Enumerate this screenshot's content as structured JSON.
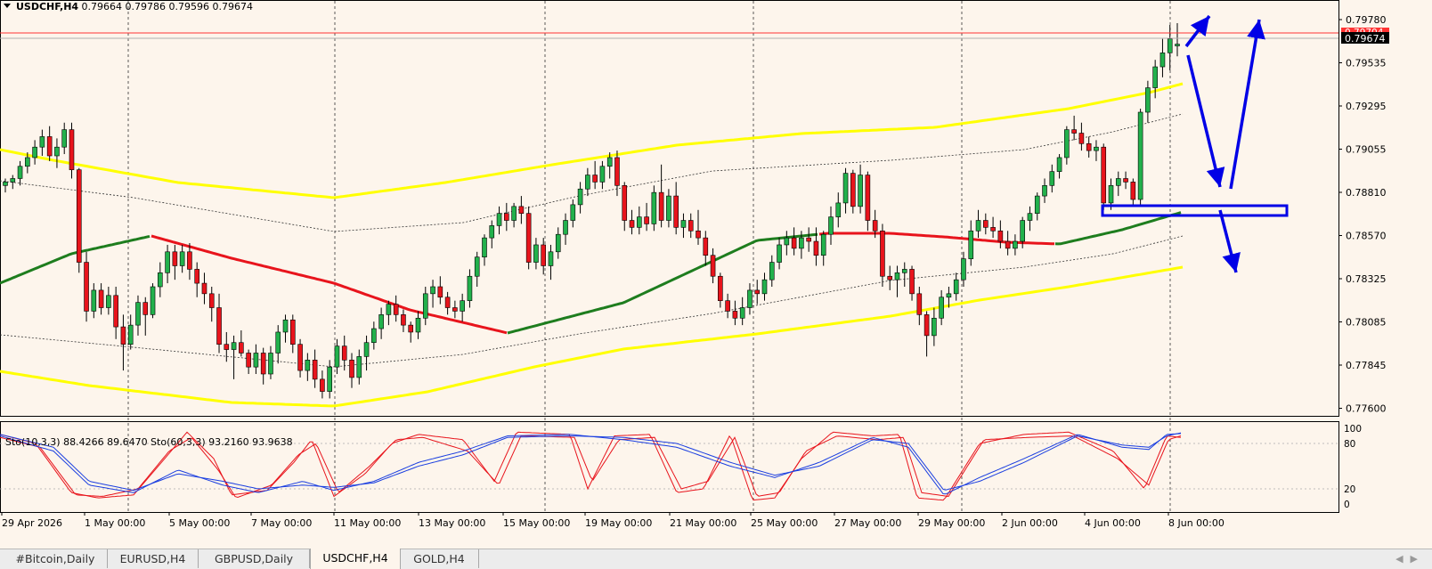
{
  "header": {
    "symbol_tf": "USDCHF,H4",
    "ohlc": "0.79664 0.79786 0.79596 0.79674"
  },
  "price_axis": {
    "labels": [
      "0.79780",
      "0.79535",
      "0.79295",
      "0.79055",
      "0.78810",
      "0.78570",
      "0.78325",
      "0.78085",
      "0.77845",
      "0.77600"
    ],
    "badge_upper": "0.79704",
    "badge_current": "0.79674"
  },
  "stoch": {
    "label": "Sto(10,3,3) 88.4266 89.6470  Sto(60,3,3) 93.2160 93.9638",
    "axis_labels": [
      "100",
      "80",
      "20",
      "0"
    ]
  },
  "time_axis": {
    "labels": [
      "29 Apr 2026",
      "1 May 00:00",
      "5 May 00:00",
      "7 May 00:00",
      "11 May 00:00",
      "13 May 00:00",
      "15 May 00:00",
      "19 May 00:00",
      "21 May 00:00",
      "25 May 00:00",
      "27 May 00:00",
      "29 May 00:00",
      "2 Jun 00:00",
      "4 Jun 00:00",
      "8 Jun 00:00"
    ]
  },
  "tabs": [
    {
      "label": "#Bitcoin,Daily"
    },
    {
      "label": "EURUSD,H4"
    },
    {
      "label": "GBPUSD,Daily"
    },
    {
      "label": "USDCHF,H4",
      "active": true
    },
    {
      "label": "GOLD,H4"
    }
  ],
  "colors": {
    "background": "#fdf5ec",
    "bull_candle": "#22b14c",
    "bear_candle": "#e8141c",
    "envelope": "#ffff00",
    "ma_up": "#1e7d1e",
    "ma_down": "#e8141c",
    "forecast_arrows": "#0000e6",
    "current_price_line": "#ff3333"
  },
  "chart_data": {
    "type": "candlestick",
    "symbol": "USDCHF",
    "timeframe": "H4",
    "ylim": [
      0.776,
      0.798
    ],
    "candles": [
      [
        0.7886,
        0.789,
        0.7882,
        0.7888
      ],
      [
        0.7888,
        0.7892,
        0.7884,
        0.789
      ],
      [
        0.789,
        0.79,
        0.7886,
        0.7897
      ],
      [
        0.7897,
        0.7905,
        0.7893,
        0.7902
      ],
      [
        0.7902,
        0.7912,
        0.7898,
        0.7908
      ],
      [
        0.7908,
        0.7918,
        0.7903,
        0.7914
      ],
      [
        0.7914,
        0.792,
        0.79,
        0.7903
      ],
      [
        0.7903,
        0.7913,
        0.7896,
        0.7908
      ],
      [
        0.7908,
        0.7922,
        0.7904,
        0.7918
      ],
      [
        0.7918,
        0.7922,
        0.789,
        0.7895
      ],
      [
        0.7895,
        0.7896,
        0.7836,
        0.7842
      ],
      [
        0.7842,
        0.7848,
        0.7808,
        0.7814
      ],
      [
        0.7814,
        0.783,
        0.781,
        0.7826
      ],
      [
        0.7826,
        0.783,
        0.7812,
        0.7816
      ],
      [
        0.7816,
        0.7828,
        0.7812,
        0.7823
      ],
      [
        0.7823,
        0.7828,
        0.7798,
        0.7805
      ],
      [
        0.7805,
        0.7812,
        0.778,
        0.7795
      ],
      [
        0.7795,
        0.7812,
        0.7792,
        0.7806
      ],
      [
        0.7806,
        0.7823,
        0.78,
        0.7819
      ],
      [
        0.7819,
        0.7822,
        0.78,
        0.7812
      ],
      [
        0.7812,
        0.783,
        0.781,
        0.7828
      ],
      [
        0.7828,
        0.7842,
        0.7822,
        0.7836
      ],
      [
        0.7836,
        0.7852,
        0.783,
        0.7848
      ],
      [
        0.7848,
        0.7852,
        0.7832,
        0.784
      ],
      [
        0.784,
        0.7852,
        0.7836,
        0.7848
      ],
      [
        0.7848,
        0.7853,
        0.7832,
        0.7838
      ],
      [
        0.7838,
        0.7842,
        0.7822,
        0.783
      ],
      [
        0.783,
        0.7836,
        0.7818,
        0.7824
      ],
      [
        0.7824,
        0.7828,
        0.7808,
        0.7816
      ],
      [
        0.7816,
        0.7824,
        0.779,
        0.7795
      ],
      [
        0.7795,
        0.7802,
        0.7785,
        0.7792
      ],
      [
        0.7792,
        0.78,
        0.7775,
        0.7796
      ],
      [
        0.7796,
        0.7803,
        0.7788,
        0.779
      ],
      [
        0.779,
        0.7792,
        0.7778,
        0.7782
      ],
      [
        0.7782,
        0.7795,
        0.7778,
        0.779
      ],
      [
        0.779,
        0.7793,
        0.7772,
        0.7778
      ],
      [
        0.7778,
        0.7794,
        0.7775,
        0.779
      ],
      [
        0.779,
        0.7806,
        0.7784,
        0.7802
      ],
      [
        0.7802,
        0.7812,
        0.7796,
        0.7809
      ],
      [
        0.7809,
        0.7812,
        0.779,
        0.7795
      ],
      [
        0.7795,
        0.7798,
        0.7776,
        0.778
      ],
      [
        0.778,
        0.779,
        0.7774,
        0.7786
      ],
      [
        0.7786,
        0.7792,
        0.777,
        0.7775
      ],
      [
        0.7775,
        0.778,
        0.7764,
        0.7768
      ],
      [
        0.7768,
        0.7786,
        0.7764,
        0.7782
      ],
      [
        0.7782,
        0.7798,
        0.7778,
        0.7794
      ],
      [
        0.7794,
        0.78,
        0.778,
        0.7786
      ],
      [
        0.7786,
        0.779,
        0.777,
        0.7776
      ],
      [
        0.7776,
        0.7792,
        0.7772,
        0.7788
      ],
      [
        0.7788,
        0.78,
        0.778,
        0.7796
      ],
      [
        0.7796,
        0.7808,
        0.7792,
        0.7804
      ],
      [
        0.7804,
        0.7816,
        0.7798,
        0.7812
      ],
      [
        0.7812,
        0.782,
        0.7806,
        0.7818
      ],
      [
        0.7818,
        0.7823,
        0.7808,
        0.7812
      ],
      [
        0.7812,
        0.7815,
        0.7802,
        0.7806
      ],
      [
        0.7806,
        0.7808,
        0.7796,
        0.7802
      ],
      [
        0.7802,
        0.7814,
        0.7798,
        0.781
      ],
      [
        0.781,
        0.7828,
        0.7806,
        0.7824
      ],
      [
        0.7824,
        0.7832,
        0.7816,
        0.7828
      ],
      [
        0.7828,
        0.7834,
        0.7818,
        0.7822
      ],
      [
        0.7822,
        0.7825,
        0.7812,
        0.7816
      ],
      [
        0.7816,
        0.782,
        0.781,
        0.7814
      ],
      [
        0.7814,
        0.7824,
        0.7808,
        0.782
      ],
      [
        0.782,
        0.7838,
        0.7816,
        0.7834
      ],
      [
        0.7834,
        0.7848,
        0.7828,
        0.7845
      ],
      [
        0.7845,
        0.7858,
        0.784,
        0.7856
      ],
      [
        0.7856,
        0.7866,
        0.785,
        0.7863
      ],
      [
        0.7863,
        0.7874,
        0.7858,
        0.787
      ],
      [
        0.787,
        0.7876,
        0.786,
        0.7866
      ],
      [
        0.7866,
        0.7876,
        0.7862,
        0.7874
      ],
      [
        0.7874,
        0.788,
        0.7864,
        0.787
      ],
      [
        0.787,
        0.7874,
        0.7838,
        0.7842
      ],
      [
        0.7842,
        0.7856,
        0.7838,
        0.7852
      ],
      [
        0.7852,
        0.7856,
        0.7835,
        0.784
      ],
      [
        0.784,
        0.7852,
        0.7832,
        0.7848
      ],
      [
        0.7848,
        0.7862,
        0.7844,
        0.7858
      ],
      [
        0.7858,
        0.787,
        0.7852,
        0.7866
      ],
      [
        0.7866,
        0.7878,
        0.7862,
        0.7875
      ],
      [
        0.7875,
        0.7888,
        0.787,
        0.7884
      ],
      [
        0.7884,
        0.7896,
        0.788,
        0.7892
      ],
      [
        0.7892,
        0.79,
        0.7884,
        0.7888
      ],
      [
        0.7888,
        0.79,
        0.7884,
        0.7897
      ],
      [
        0.7897,
        0.7905,
        0.789,
        0.7902
      ],
      [
        0.7902,
        0.7906,
        0.788,
        0.7886
      ],
      [
        0.7886,
        0.7888,
        0.786,
        0.7866
      ],
      [
        0.7866,
        0.7872,
        0.7858,
        0.7862
      ],
      [
        0.7862,
        0.7874,
        0.7858,
        0.7868
      ],
      [
        0.7868,
        0.7876,
        0.786,
        0.7864
      ],
      [
        0.7864,
        0.7886,
        0.786,
        0.7882
      ],
      [
        0.7882,
        0.7898,
        0.7862,
        0.7866
      ],
      [
        0.7866,
        0.7884,
        0.7862,
        0.788
      ],
      [
        0.788,
        0.7888,
        0.7858,
        0.7862
      ],
      [
        0.7862,
        0.787,
        0.7856,
        0.7866
      ],
      [
        0.7866,
        0.787,
        0.7856,
        0.786
      ],
      [
        0.786,
        0.7872,
        0.7852,
        0.7856
      ],
      [
        0.7856,
        0.786,
        0.784,
        0.7846
      ],
      [
        0.7846,
        0.785,
        0.783,
        0.7834
      ],
      [
        0.7834,
        0.7836,
        0.7816,
        0.782
      ],
      [
        0.782,
        0.7824,
        0.781,
        0.7814
      ],
      [
        0.7814,
        0.782,
        0.7806,
        0.781
      ],
      [
        0.781,
        0.7822,
        0.7806,
        0.7816
      ],
      [
        0.7816,
        0.783,
        0.7812,
        0.7826
      ],
      [
        0.7826,
        0.7832,
        0.7818,
        0.7824
      ],
      [
        0.7824,
        0.7836,
        0.782,
        0.7832
      ],
      [
        0.7832,
        0.7846,
        0.7828,
        0.7842
      ],
      [
        0.7842,
        0.7856,
        0.7838,
        0.7852
      ],
      [
        0.7852,
        0.786,
        0.7846,
        0.7856
      ],
      [
        0.7856,
        0.7862,
        0.7846,
        0.785
      ],
      [
        0.785,
        0.786,
        0.7844,
        0.7856
      ],
      [
        0.7856,
        0.7862,
        0.7848,
        0.7854
      ],
      [
        0.7854,
        0.7862,
        0.784,
        0.7846
      ],
      [
        0.7846,
        0.786,
        0.784,
        0.7858
      ],
      [
        0.7858,
        0.7874,
        0.7852,
        0.7868
      ],
      [
        0.7868,
        0.7882,
        0.7862,
        0.7876
      ],
      [
        0.7876,
        0.7896,
        0.787,
        0.7893
      ],
      [
        0.7893,
        0.7895,
        0.787,
        0.7874
      ],
      [
        0.7874,
        0.7898,
        0.787,
        0.7892
      ],
      [
        0.7892,
        0.7894,
        0.786,
        0.7866
      ],
      [
        0.7866,
        0.7872,
        0.7856,
        0.786
      ],
      [
        0.786,
        0.7864,
        0.7828,
        0.7834
      ],
      [
        0.7834,
        0.784,
        0.7826,
        0.7832
      ],
      [
        0.7832,
        0.784,
        0.7822,
        0.7836
      ],
      [
        0.7836,
        0.7842,
        0.7828,
        0.7838
      ],
      [
        0.7838,
        0.784,
        0.782,
        0.7824
      ],
      [
        0.7824,
        0.7828,
        0.7806,
        0.7812
      ],
      [
        0.7812,
        0.7814,
        0.7788,
        0.78
      ],
      [
        0.78,
        0.7816,
        0.7794,
        0.781
      ],
      [
        0.781,
        0.7826,
        0.7806,
        0.7822
      ],
      [
        0.7822,
        0.7828,
        0.7816,
        0.7824
      ],
      [
        0.7824,
        0.7836,
        0.782,
        0.7832
      ],
      [
        0.7832,
        0.7848,
        0.7828,
        0.7844
      ],
      [
        0.7844,
        0.7866,
        0.784,
        0.786
      ],
      [
        0.786,
        0.7872,
        0.7856,
        0.7866
      ],
      [
        0.7866,
        0.787,
        0.7858,
        0.7862
      ],
      [
        0.7862,
        0.7868,
        0.7856,
        0.786
      ],
      [
        0.786,
        0.7866,
        0.785,
        0.7854
      ],
      [
        0.7854,
        0.786,
        0.7846,
        0.785
      ],
      [
        0.785,
        0.7858,
        0.7846,
        0.7854
      ],
      [
        0.7854,
        0.7868,
        0.785,
        0.7866
      ],
      [
        0.7866,
        0.7874,
        0.786,
        0.787
      ],
      [
        0.787,
        0.7882,
        0.7866,
        0.788
      ],
      [
        0.788,
        0.789,
        0.7876,
        0.7886
      ],
      [
        0.7886,
        0.7898,
        0.7882,
        0.7894
      ],
      [
        0.7894,
        0.7904,
        0.789,
        0.7902
      ],
      [
        0.7902,
        0.792,
        0.7898,
        0.7918
      ],
      [
        0.7918,
        0.7926,
        0.7912,
        0.7916
      ],
      [
        0.7916,
        0.7922,
        0.7906,
        0.791
      ],
      [
        0.791,
        0.7914,
        0.7902,
        0.7906
      ],
      [
        0.7906,
        0.7912,
        0.79,
        0.7908
      ],
      [
        0.7908,
        0.791,
        0.7872,
        0.7876
      ],
      [
        0.7876,
        0.789,
        0.7872,
        0.7886
      ],
      [
        0.7886,
        0.7894,
        0.788,
        0.789
      ],
      [
        0.789,
        0.7894,
        0.7884,
        0.7888
      ],
      [
        0.7888,
        0.789,
        0.7874,
        0.7878
      ],
      [
        0.7878,
        0.793,
        0.7874,
        0.7928
      ],
      [
        0.7928,
        0.7946,
        0.7922,
        0.7942
      ],
      [
        0.7942,
        0.7958,
        0.7936,
        0.7954
      ],
      [
        0.7954,
        0.797,
        0.7948,
        0.7962
      ],
      [
        0.7962,
        0.7978,
        0.7952,
        0.797
      ],
      [
        0.7966,
        0.7979,
        0.796,
        0.7967
      ]
    ]
  }
}
